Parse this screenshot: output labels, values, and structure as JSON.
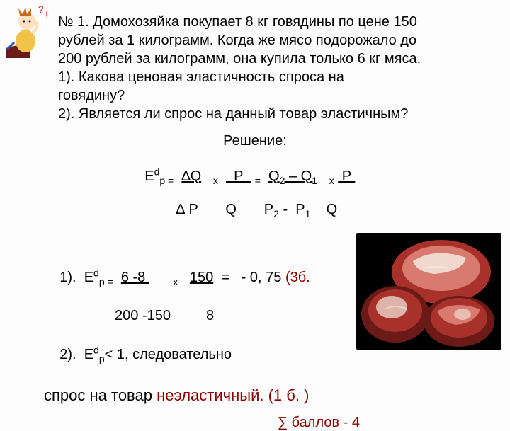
{
  "problem": {
    "line1": "№ 1. Домохозяйка покупает 8 кг говядины по цене 150",
    "line2": "рублей за 1 килограмм. Когда же мясо подорожало до",
    "line3": "200 рублей за килограмм, она купила только 6 кг мяса.",
    "q1": "1). Какова ценовая эластичность спроса   на",
    "q1b": "говядину?",
    "q2": "2). Является ли спрос на данный товар эластичным?"
  },
  "solution_label": "Решение:",
  "formula": {
    "top_html": "E<sup>d</sup><sub>p =</sub>  <span class=\"ul\">∆Q</span>   <sub>x</sub>  <span class=\"ul\">  P  </span> <sub>=</sub>  <span class=\"ul\">Q<sub>2</sub> – Q<sub>1</sub></span>   <sub>x</sub> <span class=\"ul\"> P </span>",
    "bot_html": "        ∆ P       Q       P<sub>2</sub> -  P<sub>1</sub>    Q"
  },
  "answers": {
    "a1_top_html": "1).  E<sup>d</sup><sub>p =</sub>  <span class=\"ul\">6 -8 </span>      <sub>x</sub>   <span class=\"ul\">150</span>  =   - 0, 75 <span class=\"red\">(3б.</span>",
    "a1_bot_html": "              200 -150         8",
    "a2_html": "2).  E<sup>d</sup><sub>p</sub>&lt; 1, следовательно"
  },
  "conclusion_prefix": "спрос на товар ",
  "conclusion_hl": "неэластичный",
  "conclusion_score": ". (1 б. )",
  "total": "∑    баллов - 4",
  "icons": {
    "student": "student-thinking-icon",
    "meat": "meat-photo"
  },
  "colors": {
    "text": "#000000",
    "highlight": "#8b0000",
    "bg": "#fdfdfd",
    "meat_dark": "#6b1a17",
    "meat_mid": "#a8322b",
    "meat_light": "#d87a6f",
    "meat_fat": "#f5e9e0",
    "meat_bg": "#000000"
  }
}
